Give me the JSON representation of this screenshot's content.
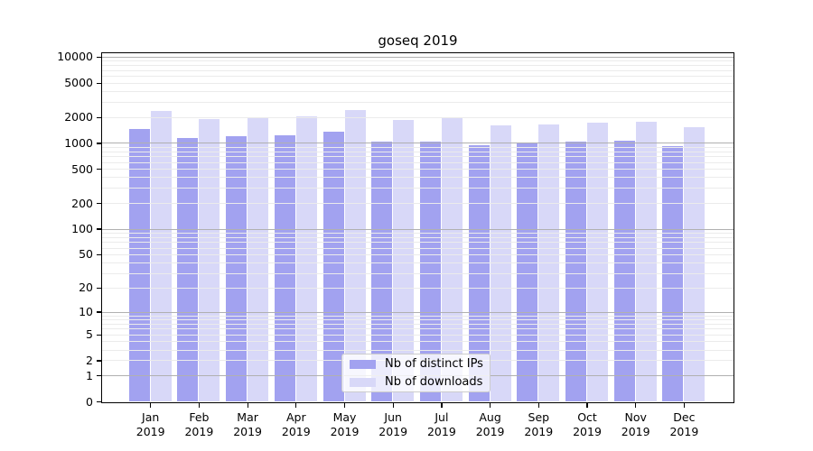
{
  "chart_data": {
    "type": "bar",
    "title": "goseq 2019",
    "categories": [
      "Jan 2019",
      "Feb 2019",
      "Mar 2019",
      "Apr 2019",
      "May 2019",
      "Jun 2019",
      "Jul 2019",
      "Aug 2019",
      "Sep 2019",
      "Oct 2019",
      "Nov 2019",
      "Dec 2019"
    ],
    "series": [
      {
        "name": "Nb of distinct IPs",
        "color": "#a2a2f0",
        "values": [
          1440,
          1150,
          1200,
          1230,
          1350,
          1040,
          1040,
          930,
          1020,
          1030,
          1070,
          910
        ]
      },
      {
        "name": "Nb of downloads",
        "color": "#d8d8f8",
        "values": [
          2330,
          1900,
          1940,
          2040,
          2410,
          1850,
          1990,
          1600,
          1630,
          1710,
          1770,
          1520
        ]
      }
    ],
    "yscale": "log1p",
    "y_ticks": [
      0,
      1,
      2,
      5,
      10,
      20,
      50,
      100,
      200,
      500,
      1000,
      2000,
      5000,
      10000
    ],
    "ylim": [
      0,
      11200
    ],
    "xlabel": "",
    "ylabel": "",
    "grid": "horizontal",
    "grid_minor_color": "#ebebeb",
    "grid_major_color": "#b0b0b0",
    "legend_position": "bottom-center-inside",
    "legend": [
      "Nb of distinct IPs",
      "Nb of downloads"
    ]
  }
}
